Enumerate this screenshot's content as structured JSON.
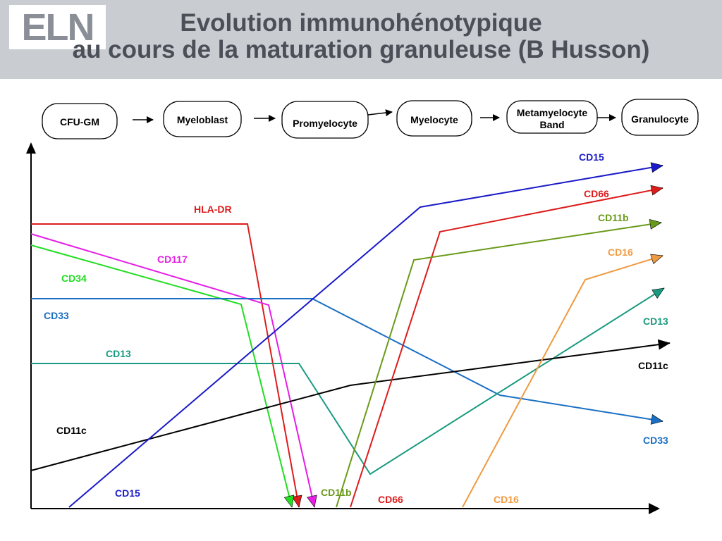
{
  "header": {
    "logo_text": "ELN",
    "title_line1": "Evolution immunohénotypique",
    "title_line2": "au cours de la maturation granuleuse (B Husson)"
  },
  "stages": [
    {
      "lines": [
        "CFU-GM"
      ]
    },
    {
      "lines": [
        "Myeloblast"
      ]
    },
    {
      "lines": [
        "Promyelocyte"
      ]
    },
    {
      "lines": [
        "Myelocyte"
      ]
    },
    {
      "lines": [
        "Metamyelocyte",
        "Band"
      ]
    },
    {
      "lines": [
        "Granulocyte"
      ]
    }
  ],
  "markers": [
    {
      "name": "HLA-DR",
      "color": "#dd1c1c"
    },
    {
      "name": "CD117",
      "color": "#e61ee6"
    },
    {
      "name": "CD34",
      "color": "#22dd22"
    },
    {
      "name": "CD33",
      "color": "#1a6fc4"
    },
    {
      "name": "CD13",
      "color": "#1a9a80"
    },
    {
      "name": "CD11c",
      "color": "#000000"
    },
    {
      "name": "CD15",
      "color": "#1a1ac8"
    },
    {
      "name": "CD66",
      "color": "#dd1c1c"
    },
    {
      "name": "CD11b",
      "color": "#6a9a1a"
    },
    {
      "name": "CD16",
      "color": "#f09a40"
    }
  ]
}
